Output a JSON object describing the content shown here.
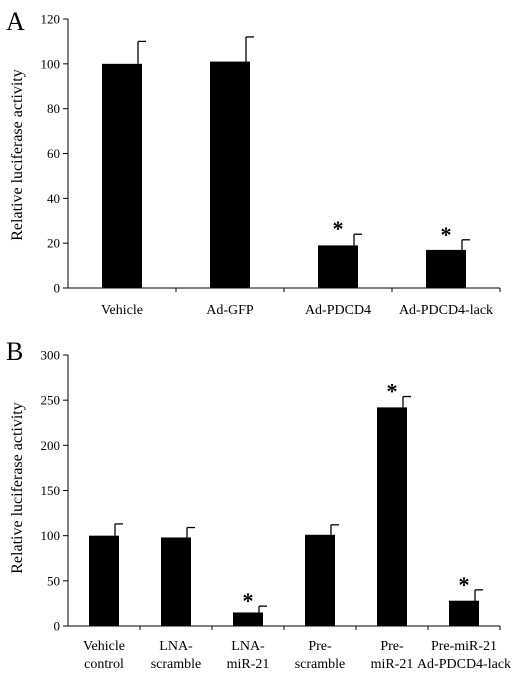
{
  "chart_data": [
    {
      "panel": "A",
      "type": "bar",
      "ylabel": "Relative luciferase activity",
      "xlabel": "",
      "ylim": [
        0,
        120
      ],
      "yticks": [
        0,
        20,
        40,
        60,
        80,
        100,
        120
      ],
      "grid": false,
      "categories": [
        [
          "Vehicle"
        ],
        [
          "Ad-GFP"
        ],
        [
          "Ad-PDCD4"
        ],
        [
          "Ad-PDCD4-lack"
        ]
      ],
      "values": [
        100,
        101,
        19,
        17
      ],
      "errors": [
        10,
        11,
        5,
        4.5
      ],
      "significance": [
        "",
        "",
        "*",
        "*"
      ],
      "bar_color": "#000000"
    },
    {
      "panel": "B",
      "type": "bar",
      "ylabel": "Relative luciferase activity",
      "xlabel": "",
      "ylim": [
        0,
        300
      ],
      "yticks": [
        0,
        50,
        100,
        150,
        200,
        250,
        300
      ],
      "grid": false,
      "categories": [
        [
          "Vehicle",
          "control"
        ],
        [
          "LNA-",
          "scramble"
        ],
        [
          "LNA-",
          "miR-21"
        ],
        [
          "Pre-",
          "scramble"
        ],
        [
          "Pre-",
          "miR-21"
        ],
        [
          "Pre-miR-21",
          "Ad-PDCD4-lack"
        ]
      ],
      "values": [
        100,
        98,
        15,
        101,
        242,
        28
      ],
      "errors": [
        13,
        11,
        7,
        11,
        12,
        12
      ],
      "significance": [
        "",
        "",
        "*",
        "",
        "*",
        "*"
      ],
      "bar_color": "#000000"
    }
  ]
}
